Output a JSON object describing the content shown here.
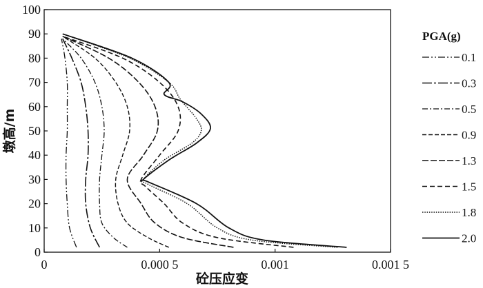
{
  "chart_data": {
    "type": "line",
    "xlabel": "砼压应变",
    "ylabel": "墩高/m",
    "xlim": [
      0,
      0.0015
    ],
    "ylim": [
      0,
      100
    ],
    "x_ticks": [
      {
        "value": 0,
        "label": "0"
      },
      {
        "value": 0.0005,
        "label": "0.000 5"
      },
      {
        "value": 0.001,
        "label": "0.001"
      },
      {
        "value": 0.0015,
        "label": "0.001 5"
      }
    ],
    "y_ticks": [
      {
        "value": 0,
        "label": "0"
      },
      {
        "value": 10,
        "label": "10"
      },
      {
        "value": 20,
        "label": "20"
      },
      {
        "value": 30,
        "label": "30"
      },
      {
        "value": 40,
        "label": "40"
      },
      {
        "value": 50,
        "label": "50"
      },
      {
        "value": 60,
        "label": "60"
      },
      {
        "value": 70,
        "label": "70"
      },
      {
        "value": 80,
        "label": "80"
      },
      {
        "value": 90,
        "label": "90"
      },
      {
        "value": 100,
        "label": "100"
      }
    ],
    "legend": {
      "title": "PGA(g)",
      "position": "right"
    },
    "series": [
      {
        "name": "0.1",
        "dash": "10,3,2,3,2,3",
        "width": 1.3,
        "points": [
          [
            0.00014,
            2
          ],
          [
            0.00011,
            10
          ],
          [
            0.0001,
            20
          ],
          [
            9.5e-05,
            30
          ],
          [
            9.5e-05,
            40
          ],
          [
            0.0001,
            50
          ],
          [
            0.0001,
            60
          ],
          [
            0.0001,
            70
          ],
          [
            9e-05,
            80
          ],
          [
            7.5e-05,
            88
          ]
        ]
      },
      {
        "name": "0.3",
        "dash": "14,3,3,3",
        "width": 1.6,
        "points": [
          [
            0.00024,
            2
          ],
          [
            0.0002,
            10
          ],
          [
            0.00018,
            20
          ],
          [
            0.00018,
            30
          ],
          [
            0.00019,
            40
          ],
          [
            0.00019,
            50
          ],
          [
            0.00018,
            60
          ],
          [
            0.00016,
            70
          ],
          [
            0.00012,
            80
          ],
          [
            8e-05,
            88
          ]
        ]
      },
      {
        "name": "0.5",
        "dash": "8,3,2,3",
        "width": 1.3,
        "points": [
          [
            0.00036,
            2
          ],
          [
            0.0003,
            6
          ],
          [
            0.00025,
            12
          ],
          [
            0.00024,
            20
          ],
          [
            0.00024,
            30
          ],
          [
            0.00025,
            40
          ],
          [
            0.00026,
            50
          ],
          [
            0.00025,
            60
          ],
          [
            0.00022,
            70
          ],
          [
            0.00016,
            80
          ],
          [
            8e-05,
            88
          ]
        ]
      },
      {
        "name": "0.9",
        "dash": "6,3",
        "width": 1.4,
        "points": [
          [
            0.00054,
            2
          ],
          [
            0.00045,
            6
          ],
          [
            0.00036,
            12
          ],
          [
            0.00032,
            20
          ],
          [
            0.00031,
            30
          ],
          [
            0.00034,
            40
          ],
          [
            0.00037,
            50
          ],
          [
            0.00036,
            60
          ],
          [
            0.00031,
            70
          ],
          [
            0.00022,
            80
          ],
          [
            8e-05,
            89
          ]
        ]
      },
      {
        "name": "1.3",
        "dash": "9,3",
        "width": 1.6,
        "points": [
          [
            0.00082,
            2
          ],
          [
            0.0006,
            6
          ],
          [
            0.00048,
            12
          ],
          [
            0.00042,
            20
          ],
          [
            0.00036,
            30
          ],
          [
            0.00043,
            40
          ],
          [
            0.00049,
            50
          ],
          [
            0.00048,
            60
          ],
          [
            0.00041,
            70
          ],
          [
            0.00028,
            80
          ],
          [
            8e-05,
            89
          ]
        ]
      },
      {
        "name": "1.5",
        "dash": "7,4",
        "width": 1.6,
        "points": [
          [
            0.00108,
            2
          ],
          [
            0.00075,
            6
          ],
          [
            0.0006,
            12
          ],
          [
            0.00052,
            20
          ],
          [
            0.00044,
            27
          ],
          [
            0.00042,
            30
          ],
          [
            0.0005,
            40
          ],
          [
            0.00058,
            50
          ],
          [
            0.00058,
            60
          ],
          [
            0.0005,
            70
          ],
          [
            0.00034,
            80
          ],
          [
            8e-05,
            89
          ]
        ]
      },
      {
        "name": "1.8",
        "dash": "1.5,1.8",
        "width": 1.5,
        "points": [
          [
            0.00127,
            2
          ],
          [
            0.0009,
            5
          ],
          [
            0.00075,
            10
          ],
          [
            0.00062,
            20
          ],
          [
            0.00045,
            28
          ],
          [
            0.00043,
            30
          ],
          [
            0.00052,
            38
          ],
          [
            0.00064,
            45
          ],
          [
            0.00068,
            50
          ],
          [
            0.00066,
            55
          ],
          [
            0.00059,
            63
          ],
          [
            0.00054,
            70
          ],
          [
            0.00037,
            80
          ],
          [
            8e-05,
            90
          ]
        ]
      },
      {
        "name": "2.0",
        "dash": "",
        "width": 1.8,
        "points": [
          [
            0.00131,
            2
          ],
          [
            0.00095,
            5
          ],
          [
            0.0008,
            10
          ],
          [
            0.00066,
            20
          ],
          [
            0.00045,
            29
          ],
          [
            0.00043,
            30
          ],
          [
            0.00054,
            38
          ],
          [
            0.00066,
            45
          ],
          [
            0.00072,
            51
          ],
          [
            0.00068,
            57
          ],
          [
            0.0006,
            62
          ],
          [
            0.00052,
            65
          ],
          [
            0.00054,
            70
          ],
          [
            0.00038,
            80
          ],
          [
            8e-05,
            90
          ]
        ]
      }
    ]
  }
}
